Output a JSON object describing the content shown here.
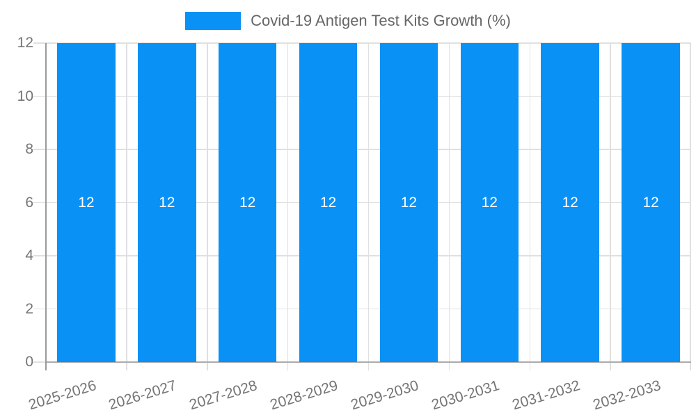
{
  "chart_data": {
    "type": "bar",
    "title": "Covid-19 Antigen Test Kits Growth (%)",
    "categories": [
      "2025-2026",
      "2026-2027",
      "2027-2028",
      "2028-2029",
      "2029-2030",
      "2030-2031",
      "2031-2032",
      "2032-2033"
    ],
    "values": [
      12,
      12,
      12,
      12,
      12,
      12,
      12,
      12
    ],
    "bar_labels": [
      "12",
      "12",
      "12",
      "12",
      "12",
      "12",
      "12",
      "12"
    ],
    "xlabel": "",
    "ylabel": "",
    "ylim": [
      0,
      12
    ],
    "yticks": [
      0,
      2,
      4,
      6,
      8,
      10,
      12
    ],
    "grid": true,
    "legend_position": "top",
    "colors": {
      "bar": "#0991F5",
      "bar_label": "#FFFFFF",
      "grid_line": "#E0E0E0",
      "y_axis_line": "#9A9A9A",
      "x_axis_line": "#ABABAB",
      "tick_text": "#757575",
      "title_text": "#666666"
    }
  }
}
